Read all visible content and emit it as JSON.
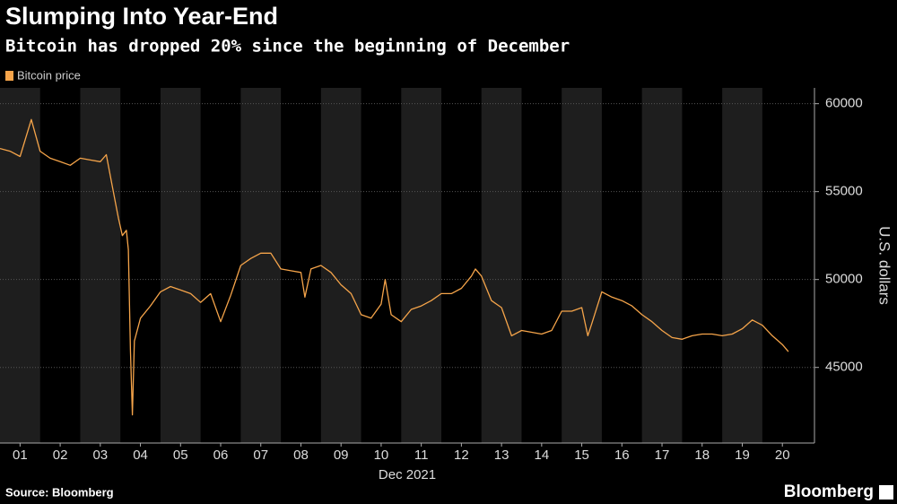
{
  "chart_data": {
    "type": "line",
    "title": "Slumping Into Year-End",
    "subtitle": "Bitcoin has dropped 20% since the beginning of December",
    "xlabel": "Dec 2021",
    "ylabel": "U.S. dollars",
    "source": "Source: Bloomberg",
    "brand": "Bloomberg",
    "x": [
      0,
      0.25,
      0.5,
      0.78,
      1.0,
      1.25,
      1.5,
      1.75,
      2.0,
      2.25,
      2.5,
      2.65,
      2.8,
      2.95,
      3.05,
      3.15,
      3.2,
      3.25,
      3.3,
      3.35,
      3.5,
      3.75,
      4.0,
      4.25,
      4.5,
      4.75,
      5.0,
      5.25,
      5.5,
      5.75,
      6.0,
      6.25,
      6.5,
      6.75,
      7.0,
      7.25,
      7.5,
      7.6,
      7.75,
      8.0,
      8.25,
      8.5,
      8.75,
      9.0,
      9.25,
      9.5,
      9.6,
      9.75,
      10.0,
      10.25,
      10.5,
      10.75,
      11.0,
      11.25,
      11.5,
      11.75,
      11.85,
      12.0,
      12.25,
      12.5,
      12.75,
      13.0,
      13.25,
      13.5,
      13.75,
      14.0,
      14.25,
      14.5,
      14.65,
      14.75,
      15.0,
      15.25,
      15.5,
      15.75,
      16.0,
      16.25,
      16.5,
      16.75,
      17.0,
      17.25,
      17.5,
      17.75,
      18.0,
      18.25,
      18.5,
      18.75,
      19.0,
      19.25,
      19.5,
      19.65
    ],
    "series": [
      {
        "name": "Bitcoin price",
        "color": "#f5a44a",
        "values": [
          57450,
          57300,
          57000,
          59100,
          57300,
          56900,
          56700,
          56500,
          56900,
          56800,
          56700,
          57100,
          55300,
          53500,
          52500,
          52800,
          51700,
          46000,
          42300,
          46500,
          47800,
          48500,
          49300,
          49600,
          49400,
          49200,
          48700,
          49200,
          47600,
          49100,
          50800,
          51200,
          51500,
          51500,
          50600,
          50500,
          50400,
          49000,
          50600,
          50800,
          50400,
          49700,
          49200,
          48000,
          47800,
          48600,
          50000,
          48000,
          47600,
          48300,
          48500,
          48800,
          49200,
          49200,
          49500,
          50200,
          50600,
          50200,
          48800,
          48400,
          46800,
          47100,
          47000,
          46900,
          47100,
          48200,
          48200,
          48400,
          46800,
          47500,
          49300,
          49000,
          48800,
          48500,
          48000,
          47600,
          47100,
          46700,
          46600,
          46800,
          46900,
          46900,
          46800,
          46900,
          47200,
          47700,
          47400,
          46800,
          46300,
          45900
        ]
      }
    ],
    "xlim": [
      0,
      20.3
    ],
    "xticks": [
      {
        "value": 0.5,
        "label": "01"
      },
      {
        "value": 1.5,
        "label": "02"
      },
      {
        "value": 2.5,
        "label": "03"
      },
      {
        "value": 3.5,
        "label": "04"
      },
      {
        "value": 4.5,
        "label": "05"
      },
      {
        "value": 5.5,
        "label": "06"
      },
      {
        "value": 6.5,
        "label": "07"
      },
      {
        "value": 7.5,
        "label": "08"
      },
      {
        "value": 8.5,
        "label": "09"
      },
      {
        "value": 9.5,
        "label": "10"
      },
      {
        "value": 10.5,
        "label": "11"
      },
      {
        "value": 11.5,
        "label": "12"
      },
      {
        "value": 12.5,
        "label": "13"
      },
      {
        "value": 13.5,
        "label": "14"
      },
      {
        "value": 14.5,
        "label": "15"
      },
      {
        "value": 15.5,
        "label": "16"
      },
      {
        "value": 16.5,
        "label": "17"
      },
      {
        "value": 17.5,
        "label": "18"
      },
      {
        "value": 18.5,
        "label": "19"
      },
      {
        "value": 19.5,
        "label": "20"
      }
    ],
    "ylim": [
      40700,
      60900
    ],
    "yticks": [
      45000,
      50000,
      55000,
      60000
    ],
    "grid": true,
    "shade_alternate_days": true,
    "y_axis_side": "right"
  }
}
